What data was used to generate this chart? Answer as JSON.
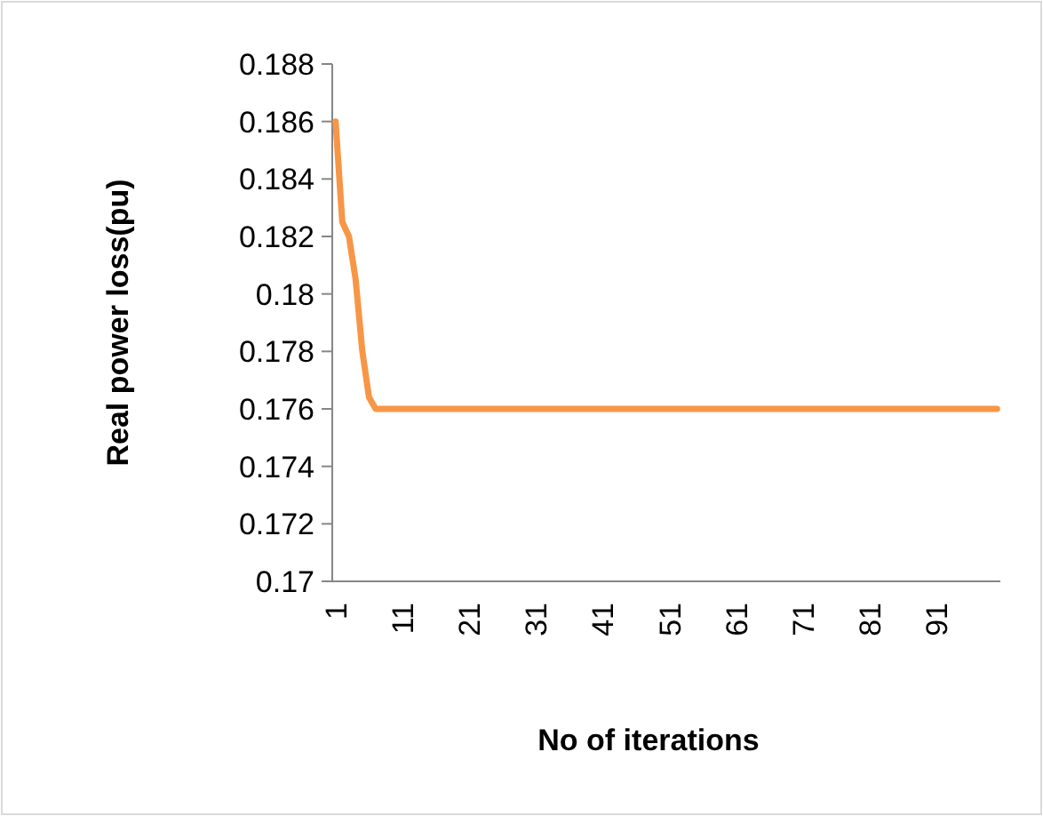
{
  "chart_data": {
    "type": "line",
    "xlabel": "No of iterations",
    "ylabel": "Real power loss(pu)",
    "categories": [
      "1",
      null,
      null,
      null,
      null,
      null,
      null,
      null,
      null,
      null,
      "11",
      null,
      null,
      null,
      null,
      null,
      null,
      null,
      null,
      null,
      "21",
      null,
      null,
      null,
      null,
      null,
      null,
      null,
      null,
      null,
      "31",
      null,
      null,
      null,
      null,
      null,
      null,
      null,
      null,
      null,
      "41",
      null,
      null,
      null,
      null,
      null,
      null,
      null,
      null,
      null,
      "51",
      null,
      null,
      null,
      null,
      null,
      null,
      null,
      null,
      null,
      "61",
      null,
      null,
      null,
      null,
      null,
      null,
      null,
      null,
      null,
      "71",
      null,
      null,
      null,
      null,
      null,
      null,
      null,
      null,
      null,
      "81",
      null,
      null,
      null,
      null,
      null,
      null,
      null,
      null,
      null,
      "91",
      null,
      null,
      null,
      null,
      null,
      null,
      null,
      null,
      null
    ],
    "series": [
      {
        "color": "#f79646",
        "values": [
          0.186,
          0.1825,
          0.182,
          0.1805,
          0.178,
          0.1764,
          0.176,
          0.176,
          0.176,
          0.176,
          0.176,
          0.176,
          0.176,
          0.176,
          0.176,
          0.176,
          0.176,
          0.176,
          0.176,
          0.176,
          0.176,
          0.176,
          0.176,
          0.176,
          0.176,
          0.176,
          0.176,
          0.176,
          0.176,
          0.176,
          0.176,
          0.176,
          0.176,
          0.176,
          0.176,
          0.176,
          0.176,
          0.176,
          0.176,
          0.176,
          0.176,
          0.176,
          0.176,
          0.176,
          0.176,
          0.176,
          0.176,
          0.176,
          0.176,
          0.176,
          0.176,
          0.176,
          0.176,
          0.176,
          0.176,
          0.176,
          0.176,
          0.176,
          0.176,
          0.176,
          0.176,
          0.176,
          0.176,
          0.176,
          0.176,
          0.176,
          0.176,
          0.176,
          0.176,
          0.176,
          0.176,
          0.176,
          0.176,
          0.176,
          0.176,
          0.176,
          0.176,
          0.176,
          0.176,
          0.176,
          0.176,
          0.176,
          0.176,
          0.176,
          0.176,
          0.176,
          0.176,
          0.176,
          0.176,
          0.176,
          0.176,
          0.176,
          0.176,
          0.176,
          0.176,
          0.176,
          0.176,
          0.176,
          0.176,
          0.176
        ]
      }
    ],
    "ylim": [
      0.17,
      0.188
    ],
    "yticks": [
      {
        "value": 0.17,
        "label": "0.17"
      },
      {
        "value": 0.172,
        "label": "0.172"
      },
      {
        "value": 0.174,
        "label": "0.174"
      },
      {
        "value": 0.176,
        "label": "0.176"
      },
      {
        "value": 0.178,
        "label": "0.178"
      },
      {
        "value": 0.18,
        "label": "0.18"
      },
      {
        "value": 0.182,
        "label": "0.182"
      },
      {
        "value": 0.184,
        "label": "0.184"
      },
      {
        "value": 0.186,
        "label": "0.186"
      },
      {
        "value": 0.188,
        "label": "0.188"
      }
    ],
    "grid": false
  }
}
